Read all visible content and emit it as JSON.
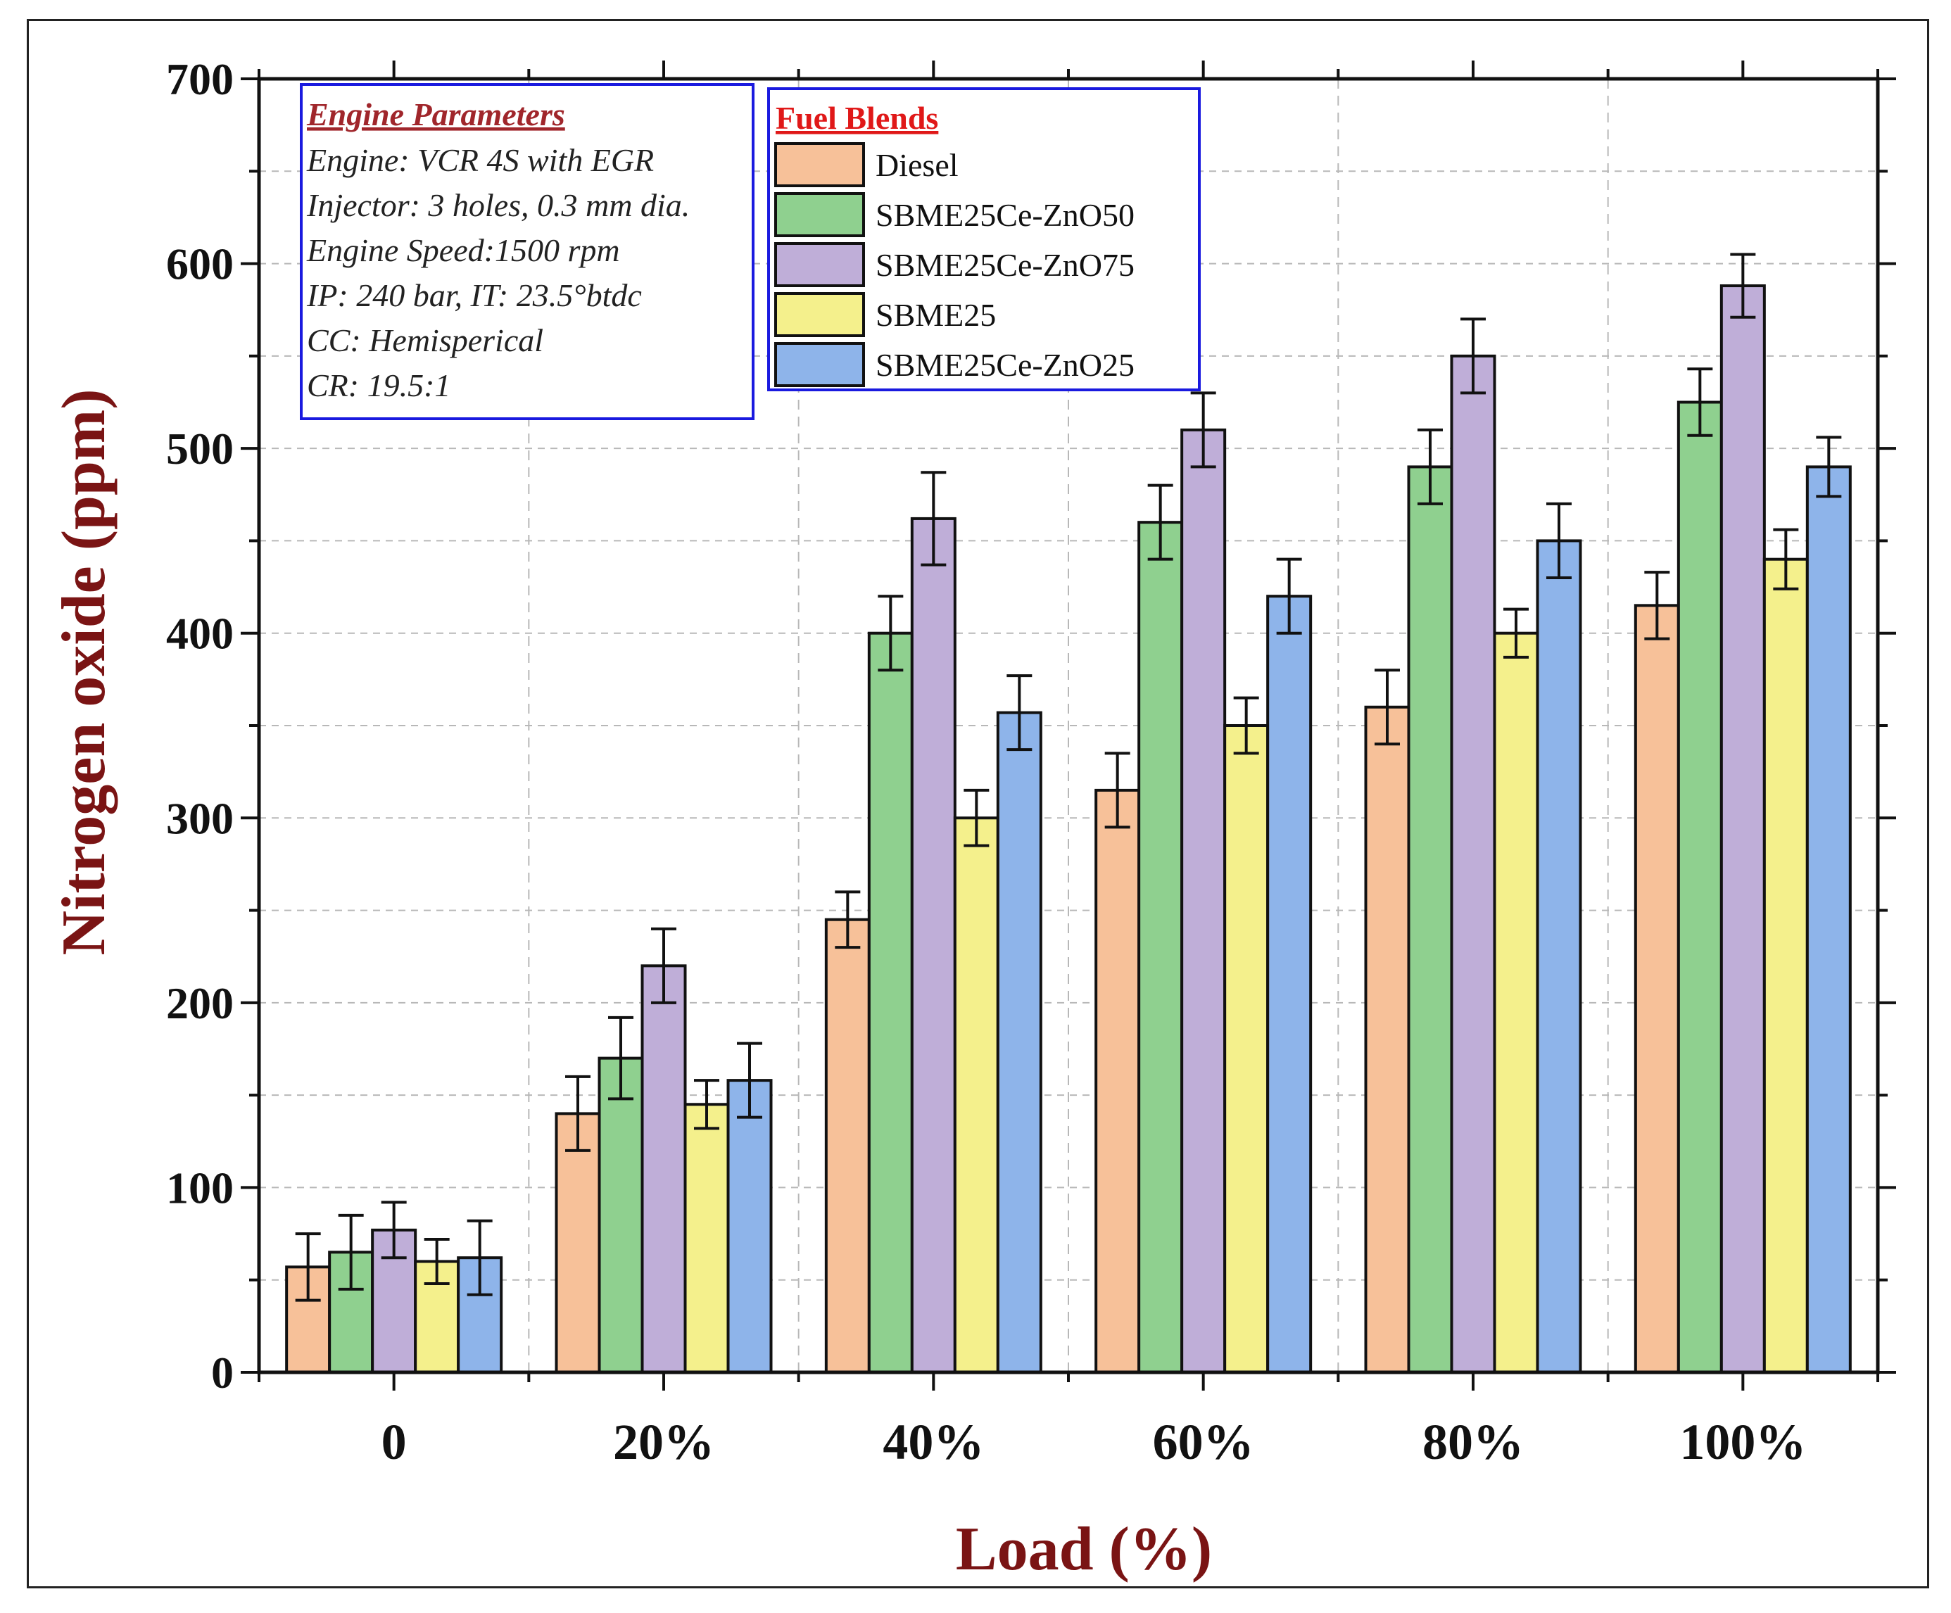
{
  "chart_data": {
    "type": "bar",
    "title": "",
    "xlabel": "Load (%)",
    "ylabel": "Nitrogen oxide (ppm)",
    "ylim": [
      0,
      700
    ],
    "yticks": [
      "0",
      "100",
      "200",
      "300",
      "400",
      "500",
      "600",
      "700"
    ],
    "grid": true,
    "categories": [
      "0",
      "20%",
      "40%",
      "60%",
      "80%",
      "100%"
    ],
    "series": [
      {
        "name": "Diesel",
        "color": "#f7c199",
        "values": [
          57,
          140,
          245,
          315,
          360,
          415
        ],
        "errors": [
          18,
          20,
          15,
          20,
          20,
          18
        ]
      },
      {
        "name": "SBME25Ce-ZnO50",
        "color": "#8fd08f",
        "values": [
          65,
          170,
          400,
          460,
          490,
          525
        ],
        "errors": [
          20,
          22,
          20,
          20,
          20,
          18
        ]
      },
      {
        "name": "SBME25Ce-ZnO75",
        "color": "#bfaed8",
        "values": [
          77,
          220,
          462,
          510,
          550,
          588
        ],
        "errors": [
          15,
          20,
          25,
          20,
          20,
          17
        ]
      },
      {
        "name": "SBME25",
        "color": "#f4f08c",
        "values": [
          60,
          145,
          300,
          350,
          400,
          440
        ],
        "errors": [
          12,
          13,
          15,
          15,
          13,
          16
        ]
      },
      {
        "name": "SBME25Ce-ZnO25",
        "color": "#8eb4ea",
        "values": [
          62,
          158,
          357,
          420,
          450,
          490
        ],
        "errors": [
          20,
          20,
          20,
          20,
          20,
          16
        ]
      }
    ],
    "legend_title": "Fuel Blends",
    "legend_position": "top-center",
    "annotation": {
      "title": "Engine Parameters",
      "lines": [
        "Engine: VCR 4S with EGR",
        "Injector: 3 holes, 0.3 mm dia.",
        "Engine Speed:1500 rpm",
        "IP: 240 bar, IT: 23.5°btdc",
        "CC: Hemisperical",
        "CR: 19.5:1"
      ]
    }
  }
}
